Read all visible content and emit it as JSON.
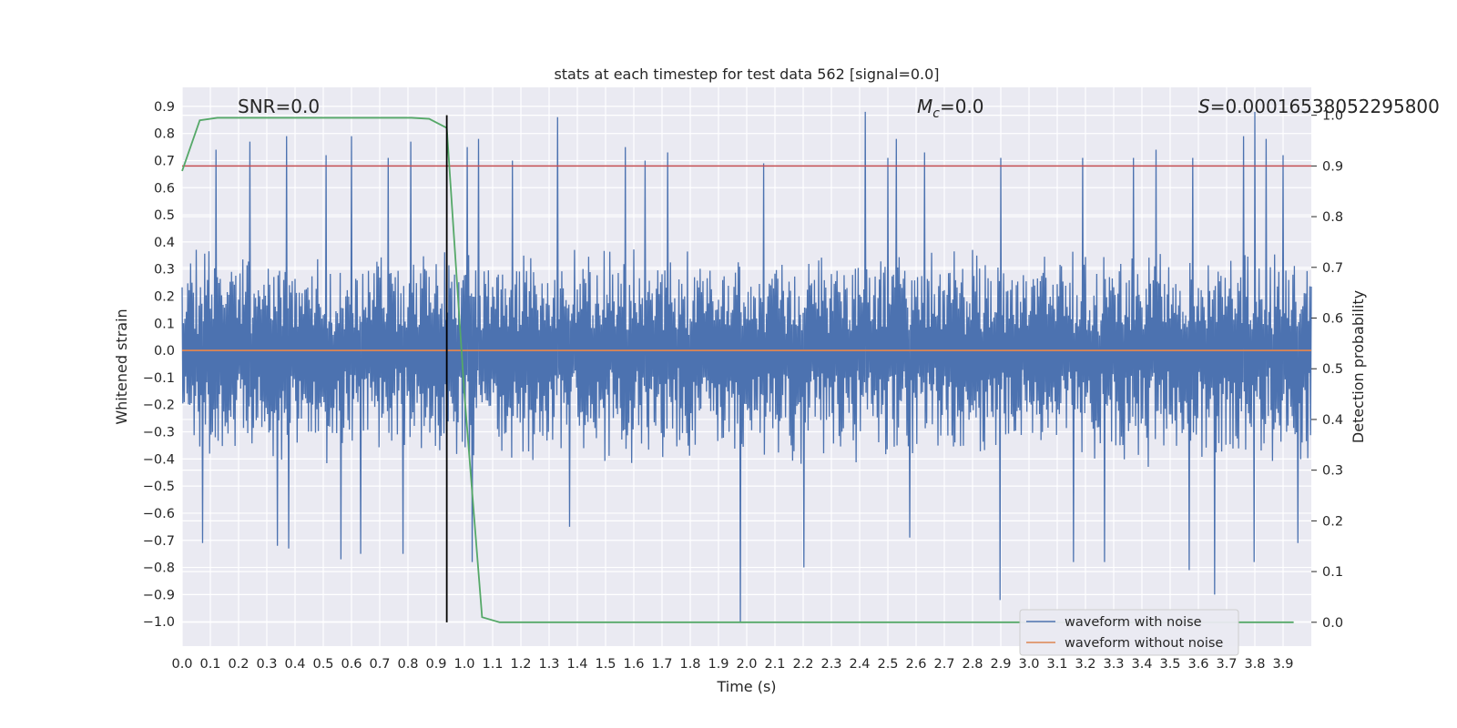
{
  "chart_data": {
    "type": "line",
    "title": "stats at each timestep for test data 562 [signal=0.0]",
    "xlabel": "Time (s)",
    "ylabel": "Whitened strain",
    "y2label": "Detection probability",
    "xlim": [
      0.0,
      4.0
    ],
    "ylim": [
      -1.09,
      0.97
    ],
    "y2lim": [
      -0.047,
      1.055
    ],
    "grid": true,
    "legend_position": "bottom-right",
    "x_ticks": [
      "0.0",
      "0.1",
      "0.2",
      "0.3",
      "0.4",
      "0.5",
      "0.6",
      "0.7",
      "0.8",
      "0.9",
      "1.0",
      "1.1",
      "1.2",
      "1.3",
      "1.4",
      "1.5",
      "1.6",
      "1.7",
      "1.8",
      "1.9",
      "2.0",
      "2.1",
      "2.2",
      "2.3",
      "2.4",
      "2.5",
      "2.6",
      "2.7",
      "2.8",
      "2.9",
      "3.0",
      "3.1",
      "3.2",
      "3.3",
      "3.4",
      "3.5",
      "3.6",
      "3.7",
      "3.8",
      "3.9"
    ],
    "y_ticks": [
      "0.9",
      "0.8",
      "0.7",
      "0.6",
      "0.5",
      "0.4",
      "0.3",
      "0.2",
      "0.1",
      "0.0",
      "−0.1",
      "−0.2",
      "−0.3",
      "−0.4",
      "−0.5",
      "−0.6",
      "−0.7",
      "−0.8",
      "−0.9",
      "−1.0"
    ],
    "y2_ticks": [
      "1.0",
      "0.9",
      "0.8",
      "0.7",
      "0.6",
      "0.5",
      "0.4",
      "0.3",
      "0.2",
      "0.1",
      "0.0"
    ],
    "annotations": {
      "snr": "SNR=0.0",
      "mc_symbol": "M",
      "mc_subscript": "c",
      "mc_value": "=0.0",
      "s_symbol": "S",
      "s_value": "=0.00016538052295800"
    },
    "series": [
      {
        "name": "waveform with noise",
        "color": "#4c72b0",
        "axis": "left",
        "kind": "noise",
        "envelope": [
          0.35,
          -0.4
        ],
        "peaks": [
          {
            "x": 0.12,
            "y": 0.74
          },
          {
            "x": 0.24,
            "y": 0.77
          },
          {
            "x": 0.37,
            "y": 0.79
          },
          {
            "x": 0.51,
            "y": 0.72
          },
          {
            "x": 0.6,
            "y": 0.79
          },
          {
            "x": 0.73,
            "y": 0.71
          },
          {
            "x": 0.81,
            "y": 0.77
          },
          {
            "x": 1.01,
            "y": 0.75
          },
          {
            "x": 1.05,
            "y": 0.78
          },
          {
            "x": 1.17,
            "y": 0.7
          },
          {
            "x": 1.33,
            "y": 0.86
          },
          {
            "x": 1.57,
            "y": 0.75
          },
          {
            "x": 1.64,
            "y": 0.7
          },
          {
            "x": 1.72,
            "y": 0.73
          },
          {
            "x": 2.06,
            "y": 0.69
          },
          {
            "x": 2.42,
            "y": 0.88
          },
          {
            "x": 2.5,
            "y": 0.71
          },
          {
            "x": 2.53,
            "y": 0.78
          },
          {
            "x": 2.63,
            "y": 0.73
          },
          {
            "x": 2.9,
            "y": 0.71
          },
          {
            "x": 3.19,
            "y": 0.71
          },
          {
            "x": 3.37,
            "y": 0.71
          },
          {
            "x": 3.45,
            "y": 0.74
          },
          {
            "x": 3.58,
            "y": 0.71
          },
          {
            "x": 3.76,
            "y": 0.79
          },
          {
            "x": 3.8,
            "y": 0.88
          },
          {
            "x": 3.84,
            "y": 0.78
          },
          {
            "x": 3.9,
            "y": 0.72
          }
        ],
        "troughs": [
          {
            "x": 0.07,
            "y": -0.71
          },
          {
            "x": 0.34,
            "y": -0.72
          },
          {
            "x": 0.38,
            "y": -0.73
          },
          {
            "x": 0.56,
            "y": -0.77
          },
          {
            "x": 0.63,
            "y": -0.75
          },
          {
            "x": 0.78,
            "y": -0.75
          },
          {
            "x": 1.03,
            "y": -0.78
          },
          {
            "x": 1.37,
            "y": -0.65
          },
          {
            "x": 1.98,
            "y": -1.0
          },
          {
            "x": 2.2,
            "y": -0.8
          },
          {
            "x": 2.58,
            "y": -0.69
          },
          {
            "x": 2.9,
            "y": -0.92
          },
          {
            "x": 3.16,
            "y": -0.78
          },
          {
            "x": 3.27,
            "y": -0.78
          },
          {
            "x": 3.57,
            "y": -0.81
          },
          {
            "x": 3.66,
            "y": -0.9
          },
          {
            "x": 3.8,
            "y": -0.78
          },
          {
            "x": 3.95,
            "y": -0.71
          }
        ]
      },
      {
        "name": "waveform without noise",
        "color": "#dd8452",
        "axis": "left",
        "x": [
          0.0,
          4.0
        ],
        "y": [
          0.0,
          0.0
        ]
      },
      {
        "name": "detection probability",
        "color": "#55a868",
        "axis": "right",
        "x": [
          0.0,
          0.0625,
          0.125,
          0.1875,
          0.25,
          0.3125,
          0.375,
          0.4375,
          0.5,
          0.5625,
          0.625,
          0.6875,
          0.75,
          0.8125,
          0.875,
          0.9375,
          1.0,
          1.0625,
          1.125,
          1.1875,
          3.9375
        ],
        "y": [
          0.89,
          0.99,
          0.995,
          0.995,
          0.995,
          0.995,
          0.995,
          0.995,
          0.995,
          0.995,
          0.995,
          0.995,
          0.995,
          0.995,
          0.993,
          0.975,
          0.45,
          0.01,
          0.0,
          0.0,
          0.0
        ]
      }
    ],
    "threshold": {
      "color": "#c44e52",
      "y2": 0.9
    },
    "marker_line": {
      "color": "#000000",
      "x": 0.9375
    },
    "legend_entries": [
      "waveform with noise",
      "waveform without noise"
    ]
  }
}
